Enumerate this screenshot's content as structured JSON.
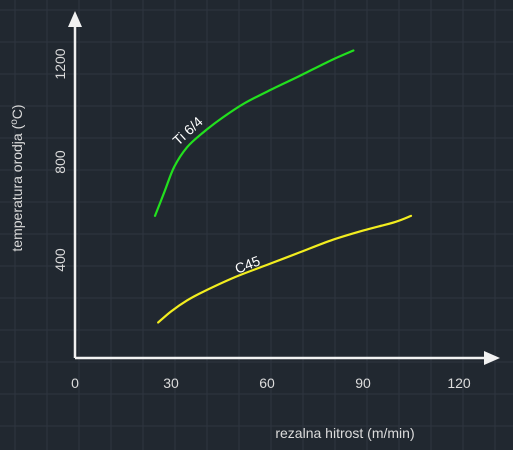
{
  "chart_data": {
    "type": "line",
    "title": "",
    "xlabel": "rezalna hitrost (m/min)",
    "ylabel_parts": [
      "temperatura orodja (",
      "o",
      "C)"
    ],
    "xlim": [
      0,
      130
    ],
    "ylim": [
      0,
      1400
    ],
    "x_ticks": [
      0,
      30,
      60,
      90,
      120
    ],
    "y_ticks": [
      400,
      800,
      1200
    ],
    "grid": true,
    "colors": {
      "background": "#212830",
      "axis": "#f2f2f2",
      "grid": "#2e3640"
    },
    "series": [
      {
        "name": "Ti 6/4",
        "color": "#22e01e",
        "x": [
          25,
          28,
          31,
          35,
          40,
          46,
          53,
          62,
          70,
          80,
          87
        ],
        "y": [
          580,
          680,
          780,
          860,
          920,
          980,
          1040,
          1100,
          1150,
          1215,
          1255
        ]
      },
      {
        "name": "C45",
        "color": "#f2ed1f",
        "x": [
          26,
          30,
          35,
          40,
          50,
          60,
          70,
          80,
          90,
          100,
          105
        ],
        "y": [
          145,
          190,
          235,
          270,
          330,
          380,
          430,
          480,
          520,
          555,
          580
        ]
      }
    ]
  }
}
